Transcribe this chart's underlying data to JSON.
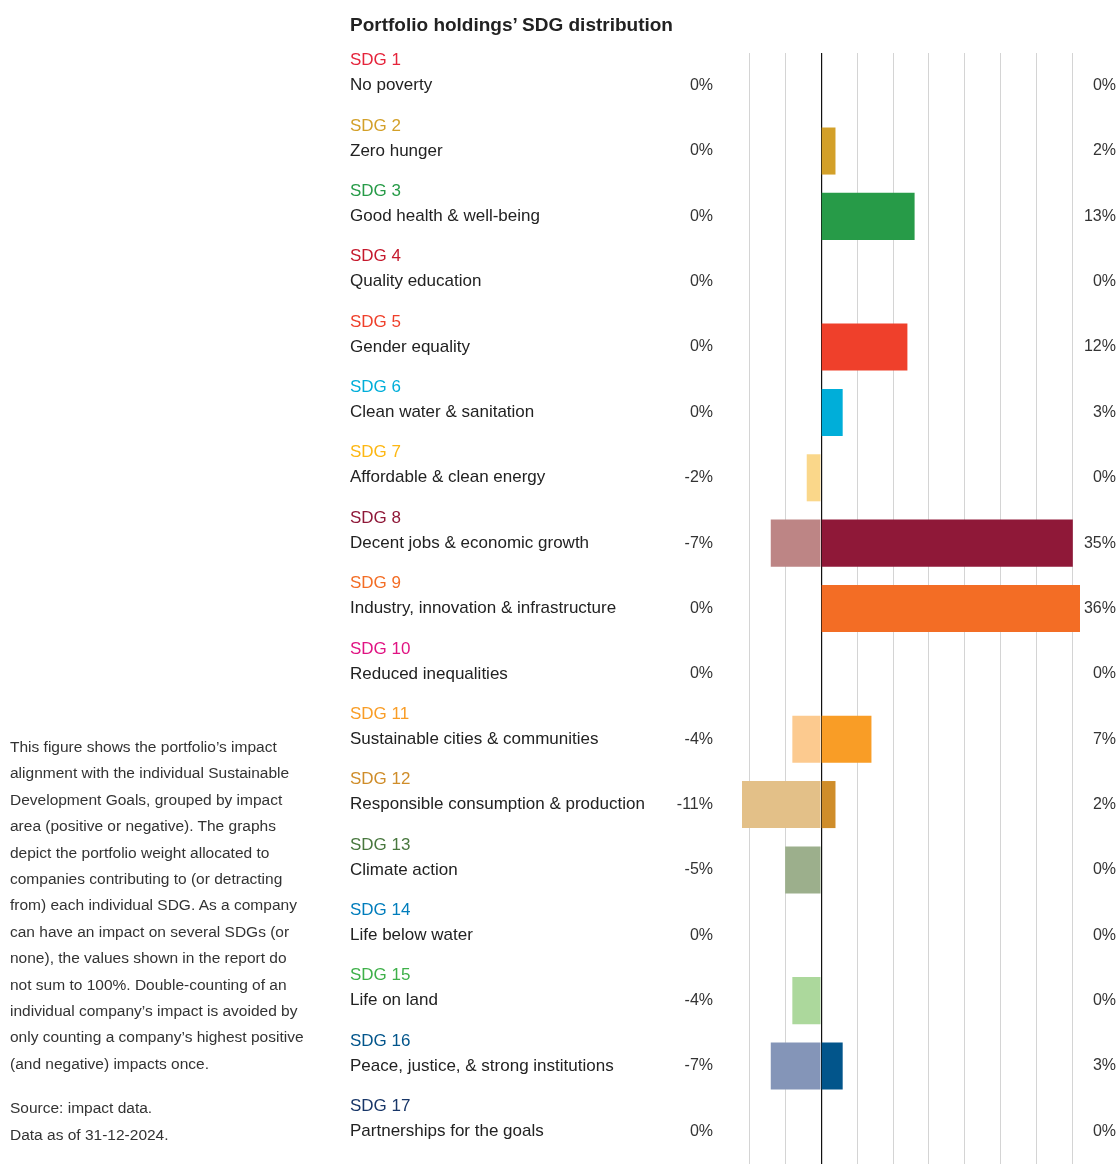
{
  "chart_data": {
    "type": "bar",
    "orientation": "horizontal",
    "stacked": true,
    "title": "Portfolio holdings’ SDG distribution",
    "categories": [
      "SDG 1\nNo poverty",
      "SDG 2\nZero hunger",
      "SDG 3\nGood health & well-being",
      "SDG 4\nQuality education",
      "SDG 5\nGender equality",
      "SDG 6\nClean water & sanitation",
      "SDG 7\nAffordable & clean energy",
      "SDG 8\nDecent jobs & economic growth",
      "SDG 9\nIndustry, innovation & infrastructure",
      "SDG 10\nReduced inequalities",
      "SDG 11\nSustainable cities & communities",
      "SDG 12\nResponsible consumption & production",
      "SDG 13\nClimate action",
      "SDG 14\nLife below water",
      "SDG 15\nLife on land",
      "SDG 16\nPeace, justice, & strong institutions",
      "SDG 17\nPartnerships for the goals"
    ],
    "series": [
      {
        "values": [
          0,
          0,
          0,
          0,
          0,
          0,
          -2,
          -7,
          0,
          0,
          -4,
          -11,
          -5,
          0,
          -4,
          -7,
          0
        ],
        "value_labels": [
          "0%",
          "0%",
          "0%",
          "0%",
          "0%",
          "0%",
          "-2%",
          "-7%",
          "0%",
          "0%",
          "-4%",
          "-11%",
          "-5%",
          "0%",
          "-4%",
          "-7%",
          "0%"
        ],
        "colors": [
          "#f29ba6",
          "#ecd3a0",
          "#92cda0",
          "#e28c96",
          "#f7a095",
          "#80d6ec",
          "#fad78a",
          "#bd8585",
          "#f9b692",
          "#ee89b3",
          "#fcca8f",
          "#e3c088",
          "#9caf8c",
          "#80bede",
          "#acd89c",
          "#8495b8",
          "#8b9bb4"
        ]
      },
      {
        "values": [
          0,
          2,
          13,
          0,
          12,
          3,
          0,
          35,
          36,
          0,
          7,
          2,
          0,
          0,
          0,
          3,
          0
        ],
        "value_labels": [
          "0%",
          "2%",
          "13%",
          "0%",
          "12%",
          "3%",
          "0%",
          "35%",
          "36%",
          "0%",
          "7%",
          "2%",
          "0%",
          "0%",
          "0%",
          "3%",
          "0%"
        ],
        "colors": [
          "#e5243b",
          "#d3a029",
          "#279b48",
          "#c5192d",
          "#ef402b",
          "#00aed9",
          "#fdb713",
          "#8f1838",
          "#f36d25",
          "#e01483",
          "#f99d26",
          "#cf8d2a",
          "#48773e",
          "#007dbc",
          "#3eb049",
          "#02558b",
          "#183668"
        ]
      }
    ],
    "xlim": [
      -11,
      36
    ],
    "xticks": [
      {
        "value": -10,
        "label": null
      },
      {
        "value": -5,
        "label": null
      },
      {
        "value": 0,
        "label": null
      },
      {
        "value": 5,
        "label": null
      },
      {
        "value": 10,
        "label": null
      },
      {
        "value": 15,
        "label": null
      },
      {
        "value": 20,
        "label": null
      },
      {
        "value": 25,
        "label": null
      },
      {
        "value": 30,
        "label": null
      },
      {
        "value": 35,
        "label": null
      }
    ],
    "grid": "x",
    "tick_labels": "y",
    "annotations": [
      "This figure shows the portfolio’s impact alignment with the individual Sustainable Development Goals, grouped by impact area (positive or negative). The graphs depict the portfolio weight allocated to companies contributing to (or detracting from) each individual SDG. As a company can have an impact on several SDGs (or none), the values shown in the report do not sum to 100%. Double-counting of an individual company’s impact is avoided by only counting a company’s highest positive (and negative) impacts once.",
      "Source: impact data.",
      "Data as of 31-12-2024."
    ]
  }
}
